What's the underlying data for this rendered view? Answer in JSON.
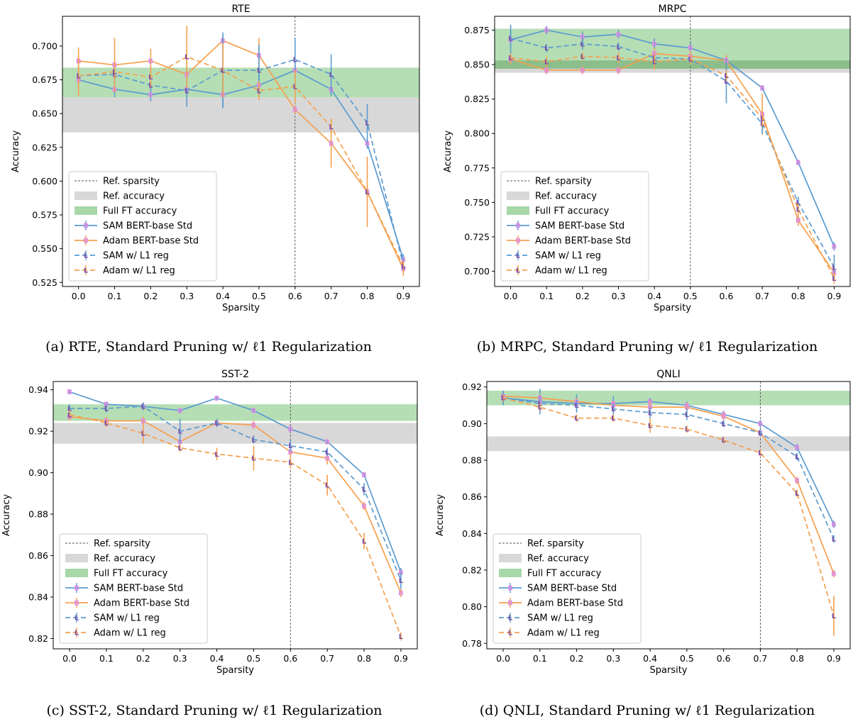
{
  "chart_data": [
    {
      "type": "line",
      "title": "RTE",
      "xlabel": "Sparsity",
      "ylabel": "Accuracy",
      "caption": "(a) RTE, Standard Pruning w/ ℓ1 Regularization",
      "ylim": [
        0.522,
        0.722
      ],
      "yticks": [
        "0.525",
        "0.550",
        "0.575",
        "0.600",
        "0.625",
        "0.650",
        "0.675",
        "0.700"
      ],
      "x": [
        0.0,
        0.1,
        0.2,
        0.3,
        0.4,
        0.5,
        0.6,
        0.7,
        0.8,
        0.9
      ],
      "xticks": [
        "0.0",
        "0.1",
        "0.2",
        "0.3",
        "0.4",
        "0.5",
        "0.6",
        "0.7",
        "0.8",
        "0.9"
      ],
      "ref_sparsity": 0.6,
      "ref_accuracy_band": [
        0.636,
        0.662
      ],
      "full_ft_band": [
        0.662,
        0.684
      ],
      "legend": [
        "Ref. sparsity",
        "Ref. accuracy",
        "Full FT accuracy",
        "SAM BERT-base Std",
        "Adam BERT-base Std",
        "SAM w/ L1 reg",
        "Adam w/ L1 reg"
      ],
      "series": [
        {
          "name": "SAM BERT-base Std",
          "values": [
            0.675,
            0.668,
            0.664,
            0.668,
            0.664,
            0.671,
            0.682,
            0.668,
            0.628,
            0.542
          ],
          "err": [
            0.004,
            0.006,
            0.005,
            0.013,
            0.01,
            0.008,
            0.006,
            0.005,
            0.004,
            0.004
          ]
        },
        {
          "name": "Adam BERT-base Std",
          "values": [
            0.689,
            0.686,
            0.689,
            0.679,
            0.704,
            0.693,
            0.653,
            0.628,
            0.592,
            0.535
          ],
          "err": [
            0.01,
            0.02,
            0.009,
            0.013,
            0.004,
            0.013,
            0.003,
            0.018,
            0.026,
            0.005
          ]
        },
        {
          "name": "SAM w/ L1 reg",
          "values": [
            0.678,
            0.679,
            0.671,
            0.667,
            0.682,
            0.682,
            0.69,
            0.679,
            0.643,
            0.538
          ],
          "err": [
            0.003,
            0.004,
            0.004,
            0.004,
            0.028,
            0.019,
            0.016,
            0.015,
            0.014,
            0.005
          ]
        },
        {
          "name": "Adam w/ L1 reg",
          "values": [
            0.678,
            0.681,
            0.677,
            0.692,
            0.682,
            0.667,
            0.67,
            0.64,
            0.592,
            0.537
          ],
          "err": [
            0.015,
            0.007,
            0.007,
            0.023,
            0.02,
            0.007,
            0.012,
            0.006,
            0.004,
            0.004
          ]
        }
      ]
    },
    {
      "type": "line",
      "title": "MRPC",
      "xlabel": "Sparsity",
      "ylabel": "Accuracy",
      "caption": "(b) MRPC, Standard Pruning w/ ℓ1 Regularization",
      "ylim": [
        0.689,
        0.885
      ],
      "yticks": [
        "0.700",
        "0.725",
        "0.750",
        "0.775",
        "0.800",
        "0.825",
        "0.850",
        "0.875"
      ],
      "x": [
        0.0,
        0.1,
        0.2,
        0.3,
        0.4,
        0.5,
        0.6,
        0.7,
        0.8,
        0.9
      ],
      "xticks": [
        "0.0",
        "0.1",
        "0.2",
        "0.3",
        "0.4",
        "0.5",
        "0.6",
        "0.7",
        "0.8",
        "0.9"
      ],
      "ref_sparsity": 0.5,
      "ref_accuracy_band": [
        0.844,
        0.853
      ],
      "full_ft_band": [
        0.847,
        0.876
      ],
      "legend": [
        "Ref. sparsity",
        "Ref. accuracy",
        "Full FT accuracy",
        "SAM BERT-base Std",
        "Adam BERT-base Std",
        "SAM w/ L1 reg",
        "Adam w/ L1 reg"
      ],
      "series": [
        {
          "name": "SAM BERT-base Std",
          "values": [
            0.868,
            0.875,
            0.87,
            0.872,
            0.865,
            0.862,
            0.853,
            0.833,
            0.779,
            0.718
          ],
          "err": [
            0.011,
            0.003,
            0.004,
            0.003,
            0.004,
            0.004,
            0.003,
            0.002,
            0.002,
            0.003
          ]
        },
        {
          "name": "Adam BERT-base Std",
          "values": [
            0.854,
            0.846,
            0.846,
            0.846,
            0.858,
            0.856,
            0.853,
            0.814,
            0.737,
            0.699
          ],
          "err": [
            0.004,
            0.003,
            0.003,
            0.003,
            0.004,
            0.004,
            0.004,
            0.015,
            0.004,
            0.005
          ]
        },
        {
          "name": "SAM w/ L1 reg",
          "values": [
            0.869,
            0.862,
            0.865,
            0.863,
            0.855,
            0.854,
            0.838,
            0.807,
            0.75,
            0.703
          ],
          "err": [
            0.006,
            0.003,
            0.004,
            0.003,
            0.003,
            0.004,
            0.016,
            0.007,
            0.004,
            0.009
          ]
        },
        {
          "name": "Adam w/ L1 reg",
          "values": [
            0.855,
            0.852,
            0.856,
            0.855,
            0.852,
            0.854,
            0.842,
            0.811,
            0.745,
            0.695
          ],
          "err": [
            0.003,
            0.004,
            0.003,
            0.004,
            0.006,
            0.004,
            0.004,
            0.006,
            0.004,
            0.004
          ]
        }
      ]
    },
    {
      "type": "line",
      "title": "SST-2",
      "xlabel": "Sparsity",
      "ylabel": "Accuracy",
      "caption": "(c) SST-2, Standard Pruning w/ ℓ1 Regularization",
      "ylim": [
        0.815,
        0.944
      ],
      "yticks": [
        "0.82",
        "0.84",
        "0.86",
        "0.88",
        "0.90",
        "0.92",
        "0.94"
      ],
      "x": [
        0.0,
        0.1,
        0.2,
        0.3,
        0.4,
        0.5,
        0.6,
        0.7,
        0.8,
        0.9
      ],
      "xticks": [
        "0.0",
        "0.1",
        "0.2",
        "0.3",
        "0.4",
        "0.5",
        "0.6",
        "0.7",
        "0.8",
        "0.9"
      ],
      "ref_sparsity": 0.6,
      "ref_accuracy_band": [
        0.914,
        0.924
      ],
      "full_ft_band": [
        0.925,
        0.933
      ],
      "legend": [
        "Ref. sparsity",
        "Ref. accuracy",
        "Full FT accuracy",
        "SAM BERT-base Std",
        "Adam BERT-base Std",
        "SAM w/ L1 reg",
        "Adam w/ L1 reg"
      ],
      "series": [
        {
          "name": "SAM BERT-base Std",
          "values": [
            0.939,
            0.933,
            0.932,
            0.93,
            0.936,
            0.93,
            0.921,
            0.915,
            0.899,
            0.852
          ],
          "err": [
            0.001,
            0.001,
            0.001,
            0.001,
            0.001,
            0.001,
            0.001,
            0.001,
            0.001,
            0.002
          ]
        },
        {
          "name": "Adam BERT-base Std",
          "values": [
            0.927,
            0.925,
            0.925,
            0.915,
            0.924,
            0.923,
            0.91,
            0.907,
            0.884,
            0.842
          ],
          "err": [
            0.002,
            0.002,
            0.002,
            0.003,
            0.002,
            0.002,
            0.004,
            0.003,
            0.002,
            0.002
          ]
        },
        {
          "name": "SAM w/ L1 reg",
          "values": [
            0.931,
            0.931,
            0.932,
            0.92,
            0.924,
            0.916,
            0.913,
            0.91,
            0.892,
            0.848
          ],
          "err": [
            0.002,
            0.002,
            0.002,
            0.006,
            0.002,
            0.002,
            0.003,
            0.002,
            0.003,
            0.004
          ]
        },
        {
          "name": "Adam w/ L1 reg",
          "values": [
            0.928,
            0.924,
            0.919,
            0.912,
            0.909,
            0.907,
            0.905,
            0.894,
            0.867,
            0.821
          ],
          "err": [
            0.002,
            0.002,
            0.005,
            0.002,
            0.003,
            0.006,
            0.003,
            0.005,
            0.004,
            0.002
          ]
        }
      ]
    },
    {
      "type": "line",
      "title": "QNLI",
      "xlabel": "Sparsity",
      "ylabel": "Accuracy",
      "caption": "(d) QNLI, Standard Pruning w/ ℓ1 Regularization",
      "ylim": [
        0.777,
        0.923
      ],
      "yticks": [
        "0.78",
        "0.80",
        "0.82",
        "0.84",
        "0.86",
        "0.88",
        "0.90",
        "0.92"
      ],
      "x": [
        0.0,
        0.1,
        0.2,
        0.3,
        0.4,
        0.5,
        0.6,
        0.7,
        0.8,
        0.9
      ],
      "xticks": [
        "0.0",
        "0.1",
        "0.2",
        "0.3",
        "0.4",
        "0.5",
        "0.6",
        "0.7",
        "0.8",
        "0.9"
      ],
      "ref_sparsity": 0.7,
      "ref_accuracy_band": [
        0.885,
        0.893
      ],
      "full_ft_band": [
        0.91,
        0.918
      ],
      "legend": [
        "Ref. sparsity",
        "Ref. accuracy",
        "Full FT accuracy",
        "SAM BERT-base Std",
        "Adam BERT-base Std",
        "SAM w/ L1 reg",
        "Adam w/ L1 reg"
      ],
      "series": [
        {
          "name": "SAM BERT-base Std",
          "values": [
            0.914,
            0.912,
            0.911,
            0.911,
            0.912,
            0.91,
            0.905,
            0.9,
            0.887,
            0.845
          ],
          "err": [
            0.004,
            0.007,
            0.005,
            0.004,
            0.002,
            0.002,
            0.002,
            0.002,
            0.002,
            0.002
          ]
        },
        {
          "name": "Adam BERT-base Std",
          "values": [
            0.915,
            0.914,
            0.912,
            0.91,
            0.909,
            0.909,
            0.904,
            0.895,
            0.869,
            0.818
          ],
          "err": [
            0.002,
            0.002,
            0.002,
            0.002,
            0.003,
            0.002,
            0.002,
            0.002,
            0.002,
            0.002
          ]
        },
        {
          "name": "SAM w/ L1 reg",
          "values": [
            0.914,
            0.911,
            0.91,
            0.908,
            0.906,
            0.905,
            0.9,
            0.895,
            0.882,
            0.837
          ],
          "err": [
            0.003,
            0.004,
            0.003,
            0.003,
            0.003,
            0.003,
            0.002,
            0.002,
            0.002,
            0.002
          ]
        },
        {
          "name": "Adam w/ L1 reg",
          "values": [
            0.914,
            0.909,
            0.903,
            0.903,
            0.899,
            0.897,
            0.891,
            0.884,
            0.862,
            0.795
          ],
          "err": [
            0.002,
            0.002,
            0.002,
            0.002,
            0.004,
            0.002,
            0.002,
            0.002,
            0.002,
            0.011
          ]
        }
      ]
    }
  ],
  "colors": {
    "sam_std": "#5b9bd0",
    "adam_std": "#f4a04e",
    "sam_l1": "#5b9bd0",
    "adam_l1": "#f4a04e",
    "marker_pink": "#e08de4",
    "marker_purple": "#7b4fa8",
    "ref_band": "#d8d8d8",
    "full_ft_band": "#a8d8a8",
    "overlap_band": "#88bb88",
    "ref_line": "#555555"
  }
}
